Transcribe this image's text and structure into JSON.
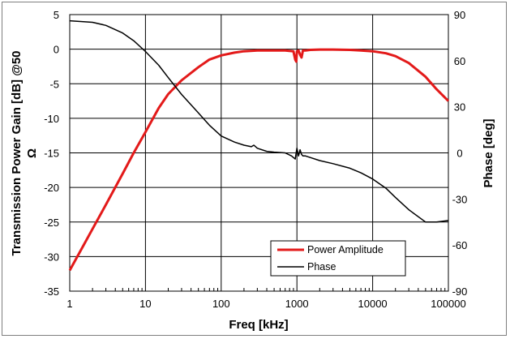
{
  "chart_data": {
    "type": "line",
    "title": "",
    "xlabel": "Freq [kHz]",
    "ylabel_left_line1": "Transmission Power Gain [dB] @50",
    "ylabel_left_line2": "Ω",
    "ylabel_right": "Phase [deg]",
    "x_scale": "log",
    "xlim": [
      1,
      100000
    ],
    "ylim_left": [
      -35,
      5
    ],
    "ylim_right": [
      -90,
      90
    ],
    "grid": true,
    "legend_position": "bottom-right",
    "x_tick_labels": [
      "1",
      "10",
      "100",
      "1000",
      "10000",
      "100000"
    ],
    "y_left_tick_labels": [
      "5",
      "0",
      "-5",
      "-10",
      "-15",
      "-20",
      "-25",
      "-30",
      "-35"
    ],
    "y_right_tick_labels": [
      "90",
      "60",
      "30",
      "0",
      "-30",
      "-60",
      "-90"
    ],
    "series": [
      {
        "name": "Power Amplitude",
        "axis": "left",
        "color": "#e31a1a",
        "x": [
          1,
          1.5,
          2,
          3,
          5,
          7,
          10,
          15,
          20,
          30,
          50,
          70,
          100,
          150,
          200,
          300,
          500,
          700,
          900,
          950,
          980,
          1000,
          1050,
          1100,
          1150,
          1200,
          1300,
          1500,
          2000,
          3000,
          5000,
          7000,
          10000,
          15000,
          20000,
          30000,
          50000,
          70000,
          100000
        ],
        "values": [
          -32.0,
          -28.5,
          -26.0,
          -22.5,
          -18.0,
          -15.0,
          -12.0,
          -8.5,
          -6.5,
          -4.5,
          -2.6,
          -1.5,
          -0.9,
          -0.5,
          -0.3,
          -0.2,
          -0.2,
          -0.2,
          -0.3,
          -1.5,
          -1.8,
          -0.3,
          -0.2,
          -0.8,
          -1.2,
          -0.2,
          -0.2,
          -0.1,
          -0.05,
          -0.05,
          -0.1,
          -0.2,
          -0.3,
          -0.6,
          -1.0,
          -2.0,
          -4.0,
          -5.8,
          -7.5
        ]
      },
      {
        "name": "Phase",
        "axis": "right",
        "color": "#000000",
        "x": [
          1,
          2,
          3,
          5,
          7,
          10,
          15,
          20,
          30,
          50,
          70,
          100,
          150,
          200,
          250,
          270,
          300,
          400,
          500,
          700,
          850,
          950,
          1000,
          1050,
          1100,
          1150,
          1200,
          1300,
          1500,
          2000,
          3000,
          5000,
          7000,
          10000,
          15000,
          20000,
          30000,
          50000,
          70000,
          100000
        ],
        "values": [
          86,
          85,
          83,
          78,
          73,
          66,
          57,
          49,
          38,
          26,
          18,
          11,
          7,
          5,
          4,
          5,
          3,
          1,
          0.5,
          0,
          -2,
          -4,
          3,
          -2,
          2,
          -1,
          -2,
          -2,
          -3,
          -5,
          -7,
          -10,
          -13,
          -17,
          -23,
          -29,
          -37,
          -45,
          -45,
          -44
        ]
      }
    ]
  }
}
